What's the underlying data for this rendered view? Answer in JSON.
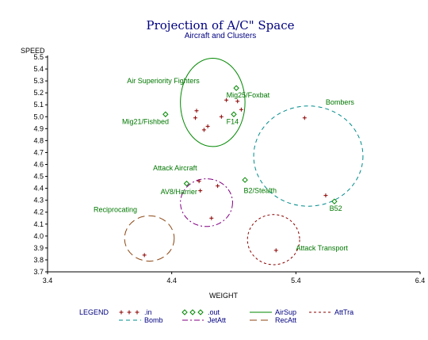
{
  "chart_data": {
    "type": "scatter",
    "title": "Projection of A/C\" Space",
    "subtitle": "Aircraft and Clusters",
    "xlabel": "WEIGHT",
    "ylabel": "SPEED",
    "xlim": [
      3.4,
      6.4
    ],
    "ylim": [
      3.7,
      5.5
    ],
    "x_ticks": [
      3.4,
      4.4,
      5.4,
      6.4
    ],
    "y_ticks": [
      3.7,
      3.8,
      3.9,
      4.0,
      4.1,
      4.2,
      4.3,
      4.4,
      4.5,
      4.6,
      4.7,
      4.8,
      4.9,
      5.0,
      5.1,
      5.2,
      5.3,
      5.4,
      5.5
    ],
    "grid": false,
    "legend_placement": "bottom",
    "colors": {
      "in": "#8b0000",
      "out": "#008800",
      "AirSup": "#008800",
      "Bomb": "#008b8b",
      "JetAtt": "#800080",
      "RecAtt": "#8b4513",
      "AttTra": "#8b0000"
    },
    "series": [
      {
        "name": ".in",
        "marker": "plus",
        "points": [
          [
            4.6,
            5.05
          ],
          [
            4.59,
            4.99
          ],
          [
            4.69,
            4.92
          ],
          [
            4.66,
            4.89
          ],
          [
            4.8,
            5.0
          ],
          [
            4.84,
            5.14
          ],
          [
            4.93,
            5.13
          ],
          [
            4.96,
            5.06
          ],
          [
            4.62,
            4.46
          ],
          [
            4.63,
            4.38
          ],
          [
            4.77,
            4.42
          ],
          [
            4.72,
            4.15
          ],
          [
            5.47,
            4.99
          ],
          [
            5.64,
            4.34
          ],
          [
            4.18,
            3.84
          ],
          [
            5.24,
            3.88
          ]
        ]
      },
      {
        "name": ".out",
        "marker": "diamond",
        "points": [
          [
            4.92,
            5.24
          ],
          [
            4.35,
            5.02
          ],
          [
            4.9,
            5.02
          ],
          [
            4.52,
            4.44
          ],
          [
            4.99,
            4.47
          ],
          [
            5.71,
            4.29
          ]
        ]
      }
    ],
    "clusters": [
      {
        "name": "AirSup",
        "label": "Air Superiority Fighters",
        "center": [
          4.73,
          5.12
        ],
        "radius_x": 0.26,
        "radius_y": 0.37,
        "style": "solid"
      },
      {
        "name": "Bomb",
        "label": "Bombers",
        "center": [
          5.5,
          4.67
        ],
        "radius_x": 0.44,
        "radius_y": 0.42,
        "style": "dashed"
      },
      {
        "name": "JetAtt",
        "label": "Attack Aircraft",
        "center": [
          4.68,
          4.28
        ],
        "radius_x": 0.21,
        "radius_y": 0.2,
        "style": "dashdot"
      },
      {
        "name": "RecAtt",
        "label": "Reciprocating",
        "center": [
          4.22,
          3.98
        ],
        "radius_x": 0.2,
        "radius_y": 0.19,
        "style": "longdash"
      },
      {
        "name": "AttTra",
        "label": "Attack Transport",
        "center": [
          5.22,
          3.97
        ],
        "radius_x": 0.21,
        "radius_y": 0.21,
        "style": "shortdash"
      }
    ],
    "point_labels": [
      {
        "text": "Mig25/Foxbat",
        "x": 4.84,
        "y": 5.16
      },
      {
        "text": "Mig21/Fishbed",
        "x": 4.0,
        "y": 4.94
      },
      {
        "text": "F14",
        "x": 4.84,
        "y": 4.94
      },
      {
        "text": "AV8/Harrier",
        "x": 4.31,
        "y": 4.35
      },
      {
        "text": "B2/Stealth",
        "x": 4.98,
        "y": 4.36
      },
      {
        "text": "B52",
        "x": 5.67,
        "y": 4.21
      }
    ],
    "cluster_labels": [
      {
        "text": "Air Superiority Fighters",
        "x": 4.04,
        "y": 5.28
      },
      {
        "text": "Bombers",
        "x": 5.64,
        "y": 5.1
      },
      {
        "text": "Attack Aircraft",
        "x": 4.25,
        "y": 4.55
      },
      {
        "text": "Reciprocating",
        "x": 3.77,
        "y": 4.2
      },
      {
        "text": "Attack Transport",
        "x": 5.4,
        "y": 3.88
      }
    ],
    "legend": {
      "title": "LEGEND",
      "entries": [
        ".in",
        ".out",
        "AirSup",
        "AttTra",
        "Bomb",
        "JetAtt",
        "RecAtt"
      ]
    }
  }
}
